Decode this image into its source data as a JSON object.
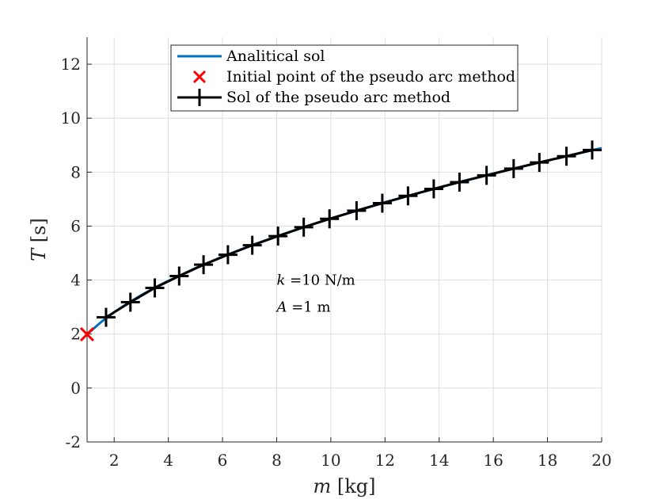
{
  "chart_data": {
    "type": "line",
    "xlabel_var": "m",
    "xlabel_unit": "[kg]",
    "ylabel_var": "T",
    "ylabel_unit": "[s]",
    "xlim": [
      1,
      20
    ],
    "ylim": [
      -2,
      13
    ],
    "xticks": [
      2,
      4,
      6,
      8,
      10,
      12,
      14,
      16,
      18,
      20
    ],
    "yticks": [
      -2,
      0,
      2,
      4,
      6,
      8,
      10,
      12
    ],
    "xtick_labels": [
      "2",
      "4",
      "6",
      "8",
      "10",
      "12",
      "14",
      "16",
      "18",
      "20"
    ],
    "ytick_labels": [
      "-2",
      "0",
      "2",
      "4",
      "6",
      "8",
      "10",
      "12"
    ],
    "grid": true,
    "legend_position": "top-center",
    "series": [
      {
        "name": "Analitical sol",
        "color": "#0072BD",
        "style": "line",
        "x": [
          1,
          1.5,
          2,
          2.5,
          3,
          3.5,
          4,
          5,
          6,
          7,
          8,
          9,
          10,
          11,
          12,
          13,
          14,
          15,
          16,
          17,
          18,
          19,
          20
        ],
        "y": [
          1.99,
          2.43,
          2.81,
          3.14,
          3.44,
          3.72,
          3.97,
          4.44,
          4.87,
          5.26,
          5.62,
          5.96,
          6.28,
          6.59,
          6.88,
          7.16,
          7.43,
          7.7,
          7.95,
          8.19,
          8.43,
          8.66,
          8.89
        ]
      },
      {
        "name": "Initial point of the pseudo arc method",
        "color": "#FF0000",
        "style": "marker-x",
        "x": [
          1
        ],
        "y": [
          1.99
        ]
      },
      {
        "name": "Sol of the pseudo arc method",
        "color": "#000000",
        "style": "line-plus",
        "x": [
          1.7,
          2.6,
          3.5,
          4.4,
          5.3,
          6.2,
          7.1,
          8.05,
          9.0,
          9.95,
          10.95,
          11.9,
          12.85,
          13.8,
          14.75,
          15.75,
          16.75,
          17.7,
          18.7,
          19.65
        ],
        "y": [
          2.62,
          3.18,
          3.71,
          4.15,
          4.57,
          4.94,
          5.29,
          5.63,
          5.96,
          6.27,
          6.57,
          6.85,
          7.12,
          7.38,
          7.63,
          7.88,
          8.13,
          8.36,
          8.59,
          8.82
        ]
      }
    ],
    "annotations": [
      {
        "var": "k",
        "text": "=10 N/m",
        "x": 8,
        "y": 4
      },
      {
        "var": "A",
        "text": "=1 m",
        "x": 8,
        "y": 3
      }
    ]
  }
}
